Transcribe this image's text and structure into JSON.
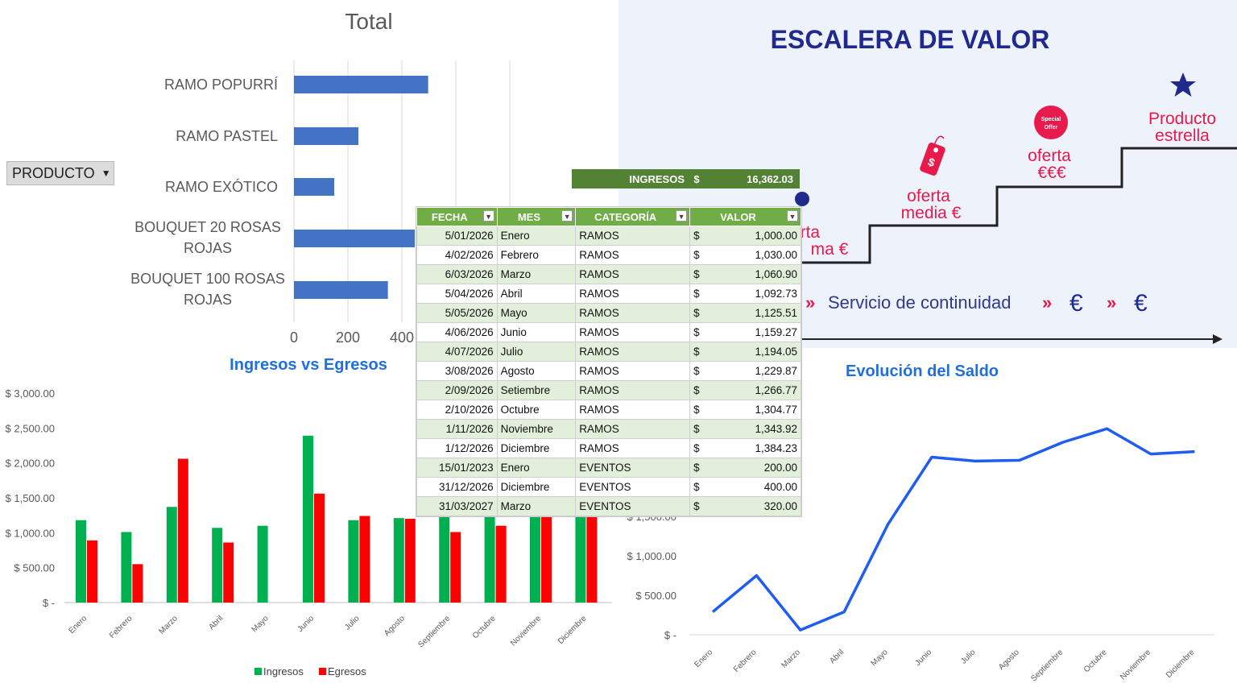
{
  "product_filter": {
    "label": "PRODUCTO"
  },
  "income_summary": {
    "label": "INGRESOS",
    "currency": "$",
    "value": "16,362.03"
  },
  "table": {
    "headers": [
      "FECHA",
      "MES",
      "CATEGORÍA",
      "VALOR"
    ],
    "rows": [
      {
        "fecha": "5/01/2026",
        "mes": "Enero",
        "categoria": "RAMOS",
        "moneda": "$",
        "valor": "1,000.00"
      },
      {
        "fecha": "4/02/2026",
        "mes": "Febrero",
        "categoria": "RAMOS",
        "moneda": "$",
        "valor": "1,030.00"
      },
      {
        "fecha": "6/03/2026",
        "mes": "Marzo",
        "categoria": "RAMOS",
        "moneda": "$",
        "valor": "1,060.90"
      },
      {
        "fecha": "5/04/2026",
        "mes": "Abril",
        "categoria": "RAMOS",
        "moneda": "$",
        "valor": "1,092.73"
      },
      {
        "fecha": "5/05/2026",
        "mes": "Mayo",
        "categoria": "RAMOS",
        "moneda": "$",
        "valor": "1,125.51"
      },
      {
        "fecha": "4/06/2026",
        "mes": "Junio",
        "categoria": "RAMOS",
        "moneda": "$",
        "valor": "1,159.27"
      },
      {
        "fecha": "4/07/2026",
        "mes": "Julio",
        "categoria": "RAMOS",
        "moneda": "$",
        "valor": "1,194.05"
      },
      {
        "fecha": "3/08/2026",
        "mes": "Agosto",
        "categoria": "RAMOS",
        "moneda": "$",
        "valor": "1,229.87"
      },
      {
        "fecha": "2/09/2026",
        "mes": "Setiembre",
        "categoria": "RAMOS",
        "moneda": "$",
        "valor": "1,266.77"
      },
      {
        "fecha": "2/10/2026",
        "mes": "Octubre",
        "categoria": "RAMOS",
        "moneda": "$",
        "valor": "1,304.77"
      },
      {
        "fecha": "1/11/2026",
        "mes": "Noviembre",
        "categoria": "RAMOS",
        "moneda": "$",
        "valor": "1,343.92"
      },
      {
        "fecha": "1/12/2026",
        "mes": "Diciembre",
        "categoria": "RAMOS",
        "moneda": "$",
        "valor": "1,384.23"
      },
      {
        "fecha": "15/01/2023",
        "mes": "Enero",
        "categoria": "EVENTOS",
        "moneda": "$",
        "valor": "200.00"
      },
      {
        "fecha": "31/12/2026",
        "mes": "Diciembre",
        "categoria": "EVENTOS",
        "moneda": "$",
        "valor": "400.00"
      },
      {
        "fecha": "31/03/2027",
        "mes": "Marzo",
        "categoria": "EVENTOS",
        "moneda": "$",
        "valor": "320.00"
      }
    ]
  },
  "value_ladder": {
    "title": "ESCALERA DE VALOR",
    "steps": [
      "erta",
      "ma €",
      "oferta",
      "media €",
      "oferta",
      "€€€",
      "Producto",
      "estrella"
    ],
    "badge_text": [
      "Special",
      "Offer"
    ],
    "tag_symbol": "$",
    "service_text": "Servicio de continuidad",
    "currency_symbol": "€",
    "accent_color": "#e8194b",
    "title_color": "#1f2a8c"
  },
  "chart_data": [
    {
      "type": "bar",
      "orientation": "horizontal",
      "title": "Total",
      "categories": [
        "RAMO POPURRÍ",
        "RAMO PASTEL",
        "RAMO EXÓTICO",
        "BOUQUET 20 ROSAS ROJAS",
        "BOUQUET 100 ROSAS ROJAS"
      ],
      "values": [
        500,
        240,
        150,
        450,
        350
      ],
      "xlim": [
        0,
        800
      ],
      "xticks": [
        "0",
        "200",
        "400"
      ],
      "color": "#4472c4",
      "grid": true
    },
    {
      "type": "bar",
      "title": "Ingresos vs Egresos",
      "categories": [
        "Enero",
        "Febrero",
        "Marzo",
        "Abril",
        "Mayo",
        "Junio",
        "Julio",
        "Agosto",
        "Septiembre",
        "Octubre",
        "Noviembre",
        "Diciembre"
      ],
      "series": [
        {
          "name": "Ingresos",
          "color": "#00b050",
          "values": [
            1180,
            1010,
            1370,
            1070,
            1100,
            2390,
            1180,
            1210,
            1260,
            1310,
            1340,
            1380
          ]
        },
        {
          "name": "Egresos",
          "color": "#ff0000",
          "values": [
            890,
            550,
            2060,
            860,
            0,
            1560,
            1240,
            1200,
            1010,
            1100,
            1340,
            1340
          ]
        }
      ],
      "ylim": [
        0,
        3000
      ],
      "yticks": [
        "$ -",
        "$ 500.00",
        "$ 1,000.00",
        "$ 1,500.00",
        "$ 2,000.00",
        "$ 2,500.00",
        "$ 3,000.00"
      ],
      "legend": "bottom",
      "title_color": "#1f6fe0"
    },
    {
      "type": "line",
      "title": "Evolución del Saldo",
      "categories": [
        "Enero",
        "Febrero",
        "Marzo",
        "Abril",
        "Mayo",
        "Junio",
        "Julio",
        "Agosto",
        "Septiembre",
        "Octubre",
        "Noviembre",
        "Diciembre"
      ],
      "values": [
        290,
        750,
        60,
        290,
        1400,
        2250,
        2200,
        2210,
        2440,
        2610,
        2290,
        2320
      ],
      "ylim": [
        0,
        3000
      ],
      "yticks": [
        "$ -",
        "$ 500.00",
        "$ 1,000.00",
        "$ 1,500.00"
      ],
      "color": "#1f5cf0",
      "title_color": "#1f6fe0"
    }
  ]
}
